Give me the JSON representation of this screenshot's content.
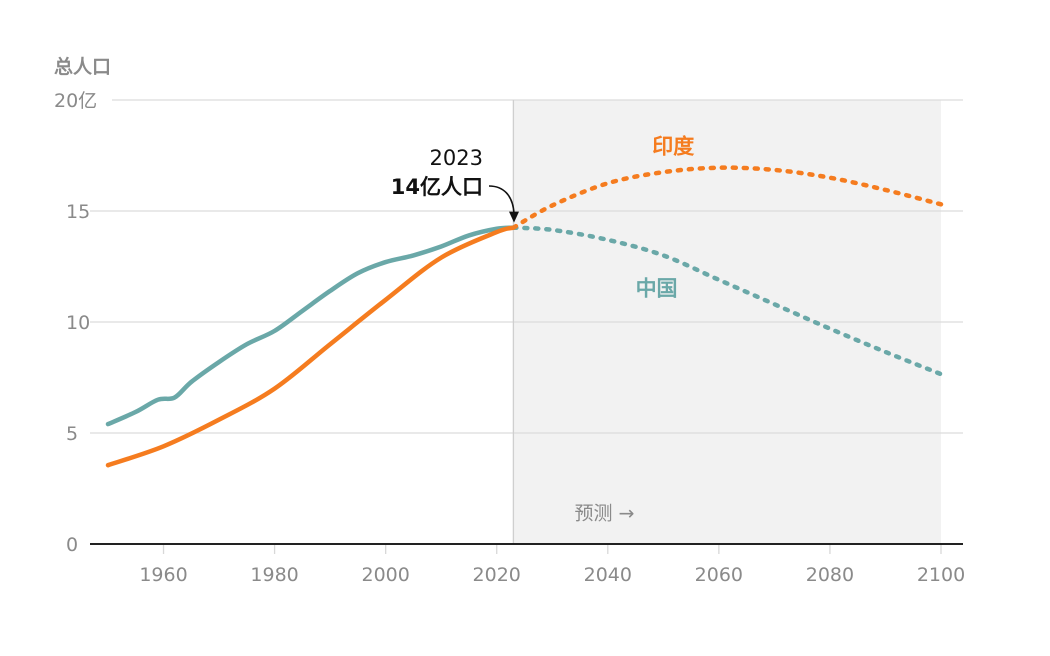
{
  "chart_data": {
    "type": "line",
    "ylabel": "总人口",
    "ylim": [
      0,
      20
    ],
    "xlim": [
      1950,
      2100
    ],
    "y_ticks": [
      {
        "value": 0,
        "label": "0"
      },
      {
        "value": 5,
        "label": "5"
      },
      {
        "value": 10,
        "label": "10"
      },
      {
        "value": 15,
        "label": "15"
      },
      {
        "value": 20,
        "label": "20亿"
      }
    ],
    "x_ticks": [
      {
        "value": 1960,
        "label": "1960"
      },
      {
        "value": 1980,
        "label": "1980"
      },
      {
        "value": 2000,
        "label": "2000"
      },
      {
        "value": 2020,
        "label": "2020"
      },
      {
        "value": 2040,
        "label": "2040"
      },
      {
        "value": 2060,
        "label": "2060"
      },
      {
        "value": 2080,
        "label": "2080"
      },
      {
        "value": 2100,
        "label": "2100"
      }
    ],
    "grid": true,
    "projection_start": 2023,
    "projection_label": "预测 →",
    "annotation": {
      "year": 2023,
      "value": 14.25,
      "line1": "2023",
      "line2": "14亿人口"
    },
    "series": [
      {
        "name": "中国",
        "color": "#6aa8a8",
        "historical": {
          "x": [
            1950,
            1955,
            1959,
            1962,
            1965,
            1970,
            1975,
            1980,
            1985,
            1990,
            1995,
            2000,
            2005,
            2010,
            2015,
            2020,
            2023
          ],
          "y": [
            5.4,
            5.95,
            6.5,
            6.6,
            7.3,
            8.2,
            9.0,
            9.6,
            10.5,
            11.4,
            12.2,
            12.7,
            13.0,
            13.4,
            13.9,
            14.2,
            14.25
          ]
        },
        "projection": {
          "x": [
            2023,
            2030,
            2040,
            2050,
            2060,
            2070,
            2080,
            2090,
            2100
          ],
          "y": [
            14.25,
            14.15,
            13.7,
            13.0,
            11.9,
            10.8,
            9.7,
            8.65,
            7.65
          ]
        }
      },
      {
        "name": "印度",
        "color": "#f57c1f",
        "historical": {
          "x": [
            1950,
            1960,
            1970,
            1980,
            1990,
            2000,
            2010,
            2020,
            2023
          ],
          "y": [
            3.55,
            4.4,
            5.6,
            7.0,
            9.0,
            11.0,
            12.9,
            14.05,
            14.25
          ]
        },
        "projection": {
          "x": [
            2023,
            2030,
            2040,
            2050,
            2060,
            2070,
            2080,
            2090,
            2100
          ],
          "y": [
            14.25,
            15.25,
            16.25,
            16.75,
            16.95,
            16.85,
            16.5,
            15.95,
            15.3
          ]
        }
      }
    ]
  }
}
